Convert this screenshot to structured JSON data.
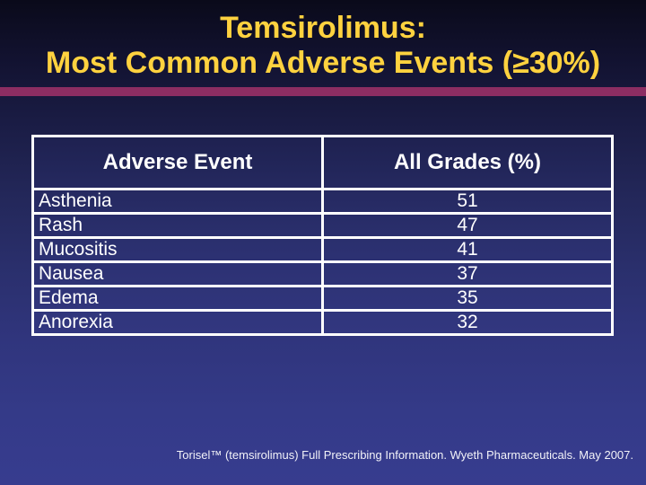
{
  "slide": {
    "title_line1": "Temsirolimus:",
    "title_line2": "Most Common Adverse Events (≥30%)",
    "footer": "Torisel™ (temsirolimus) Full Prescribing Information. Wyeth Pharmaceuticals. May 2007."
  },
  "table": {
    "headers": [
      "Adverse Event",
      "All Grades (%)"
    ],
    "rows": [
      {
        "event": "Asthenia",
        "pct": "51"
      },
      {
        "event": "Rash",
        "pct": "47"
      },
      {
        "event": "Mucositis",
        "pct": "41"
      },
      {
        "event": "Nausea",
        "pct": "37"
      },
      {
        "event": "Edema",
        "pct": "35"
      },
      {
        "event": "Anorexia",
        "pct": "32"
      }
    ]
  },
  "colors": {
    "title_text": "#ffd23f",
    "divider": "#8c2d62",
    "background_top": "#0a0a1a",
    "background_bottom": "#373c8f",
    "table_border": "#ffffff",
    "body_text": "#ffffff"
  }
}
